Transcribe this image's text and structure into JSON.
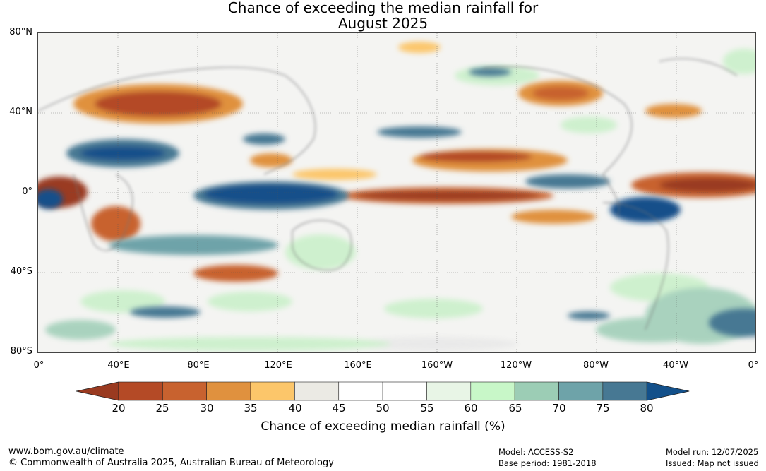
{
  "title_line1": "Chance of exceeding the median rainfall for",
  "title_line2": "August 2025",
  "lat_labels": [
    "80°N",
    "40°N",
    "0°",
    "40°S",
    "80°S"
  ],
  "lon_labels": [
    "0°",
    "40°E",
    "80°E",
    "120°E",
    "160°E",
    "160°W",
    "120°W",
    "80°W",
    "40°W",
    "0°"
  ],
  "colorbar": {
    "label": "Chance of exceeding median rainfall (%)",
    "ticks": [
      "20",
      "25",
      "30",
      "35",
      "40",
      "45",
      "50",
      "55",
      "60",
      "65",
      "70",
      "75",
      "80"
    ],
    "colors": [
      "#9a3a20",
      "#b44a26",
      "#c8622f",
      "#e0913e",
      "#fcc66a",
      "#ebeae4",
      "#ffffff",
      "#ffffff",
      "#e8f5e6",
      "#c8f7c8",
      "#9ccdb5",
      "#6ea3a9",
      "#477893",
      "#13508a"
    ]
  },
  "footer": {
    "website": "www.bom.gov.au/climate",
    "copyright": "© Commonwealth of Australia 2025, Australian Bureau of Meteorology",
    "model": "Model: ACCESS-S2",
    "base_period": "Base period: 1981-2018",
    "model_run": "Model run: 12/07/2025",
    "issued": "Issued: Map not issued"
  }
}
